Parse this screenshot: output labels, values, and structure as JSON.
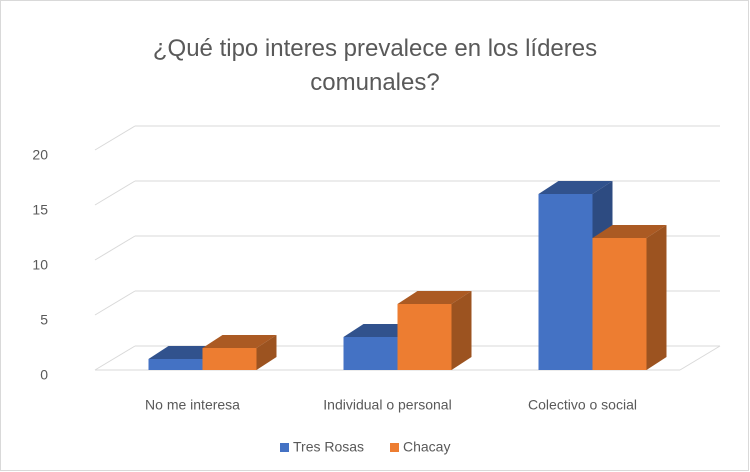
{
  "chart_data": {
    "type": "bar3d",
    "title": "¿Qué tipo interes prevalece en los líderes comunales?",
    "categories": [
      "No me interesa",
      "Individual o personal",
      "Colectivo o social"
    ],
    "series": [
      {
        "name": "Tres Rosas",
        "color": "#4472c4",
        "values": [
          1,
          3,
          16
        ]
      },
      {
        "name": "Chacay",
        "color": "#ed7d31",
        "values": [
          2,
          6,
          12
        ]
      }
    ],
    "ylim": [
      0,
      20
    ],
    "yticks": [
      0,
      5,
      10,
      15,
      20
    ],
    "grid": true,
    "legend": "bottom"
  }
}
